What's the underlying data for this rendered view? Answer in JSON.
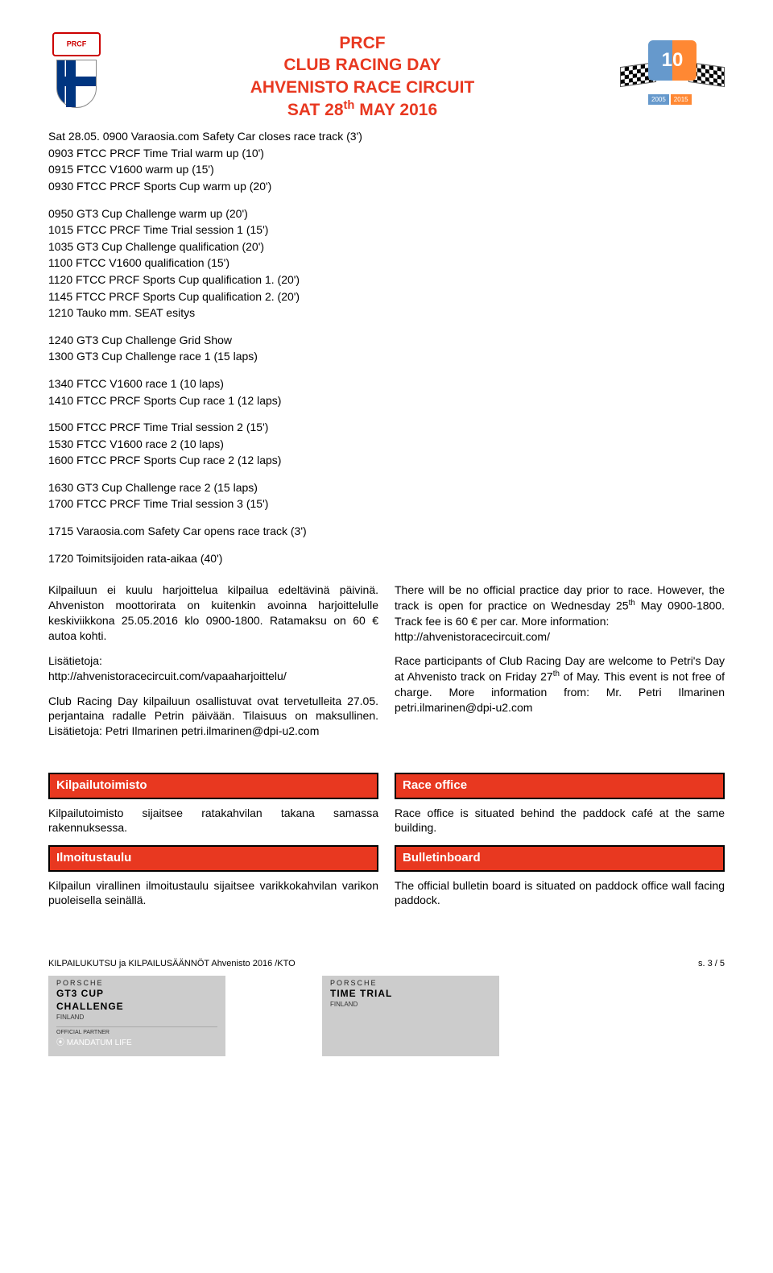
{
  "header": {
    "line1": "PRCF",
    "line2": "CLUB RACING DAY",
    "line3": "AHVENISTO RACE CIRCUIT",
    "line4_pre": "SAT 28",
    "line4_sup": "th",
    "line4_post": " MAY 2016",
    "badge_number": "10",
    "year1": "2005",
    "year2": "2015"
  },
  "schedule": {
    "block1": [
      "Sat 28.05. 0900 Varaosia.com Safety Car closes race track (3')",
      "0903 FTCC PRCF Time Trial warm up (10')",
      "0915 FTCC V1600 warm up (15')",
      "0930 FTCC PRCF Sports Cup warm up (20')"
    ],
    "block2": [
      "0950 GT3 Cup Challenge warm up (20')",
      "1015 FTCC PRCF Time Trial session 1 (15')",
      "1035 GT3 Cup Challenge qualification (20')",
      "1100 FTCC V1600 qualification (15')",
      "1120 FTCC PRCF Sports Cup qualification 1. (20')",
      "1145 FTCC PRCF Sports Cup qualification 2. (20')",
      "1210 Tauko mm. SEAT esitys"
    ],
    "block3": [
      "1240 GT3 Cup Challenge Grid Show",
      "1300 GT3 Cup Challenge race 1 (15 laps)"
    ],
    "block4": [
      "1340 FTCC V1600 race 1 (10 laps)",
      "1410 FTCC PRCF Sports Cup race 1 (12 laps)"
    ],
    "block5": [
      "1500 FTCC PRCF Time Trial session 2 (15')",
      "1530 FTCC V1600 race 2 (10 laps)",
      "1600 FTCC PRCF Sports Cup race 2 (12 laps)"
    ],
    "block6": [
      "1630 GT3 Cup Challenge race 2 (15 laps)",
      "1700 FTCC PRCF Time Trial session 3 (15')"
    ],
    "block7": [
      "1715 Varaosia.com Safety Car opens race track (3')"
    ],
    "block8": [
      "1720 Toimitsijoiden rata-aikaa (40')"
    ]
  },
  "left_col": {
    "p1": "Kilpailuun ei kuulu harjoittelua kilpailua edeltävinä päivinä. Ahveniston moottorirata on kuitenkin avoinna harjoittelulle keskiviikkona 25.05.2016 klo 0900-1800. Ratamaksu on 60 € autoa kohti.",
    "p2a": "Lisätietoja:",
    "p2b": "http://ahvenistoracecircuit.com/vapaaharjoittelu/",
    "p3": "Club Racing Day kilpailuun osallistuvat ovat tervetulleita 27.05. perjantaina radalle Petrin päivään. Tilaisuus on maksullinen. Lisätietoja: Petri Ilmarinen   petri.ilmarinen@dpi-u2.com"
  },
  "right_col": {
    "p1_pre": "There will be no official practice day prior to race. However, the track is open for practice on Wednesday 25",
    "p1_sup": "th",
    "p1_post": " May 0900-1800. Track fee is 60 € per car. More information:",
    "p1_url": "http://ahvenistoracecircuit.com/",
    "p2_pre": "Race participants of Club Racing Day are welcome to Petri's Day at Ahvenisto track on Friday 27",
    "p2_sup": "th",
    "p2_post": " of May. This event is not free of charge. More information from: Mr. Petri Ilmarinen petri.ilmarinen@dpi-u2.com"
  },
  "sections": {
    "kilpailutoimisto_title": "Kilpailutoimisto",
    "kilpailutoimisto_body": "Kilpailutoimisto sijaitsee ratakahvilan takana samassa rakennuksessa.",
    "raceoffice_title": "Race office",
    "raceoffice_body": "Race office is situated behind the paddock café at the same building.",
    "ilmoitustaulu_title": "Ilmoitustaulu",
    "ilmoitustaulu_body": "Kilpailun virallinen ilmoitustaulu sijaitsee varikkokahvilan varikon puoleisella seinällä.",
    "bulletin_title": "Bulletinboard",
    "bulletin_body": "The official bulletin board is situated on paddock office wall facing paddock."
  },
  "footer": {
    "left": "KILPAILUKUTSU ja KILPAILUSÄÄNNÖT Ahvenisto 2016 /KTO",
    "right": "s. 3 / 5"
  },
  "sponsors": {
    "left": {
      "brand": "PORSCHE",
      "line1": "GT3 CUP",
      "line2": "CHALLENGE",
      "line3": "FINLAND",
      "partner": "OFFICIAL PARTNER",
      "mandatum": "⦿ MANDATUM LIFE"
    },
    "right": {
      "brand": "PORSCHE",
      "line1": "TIME TRIAL",
      "line2": "FINLAND"
    }
  }
}
